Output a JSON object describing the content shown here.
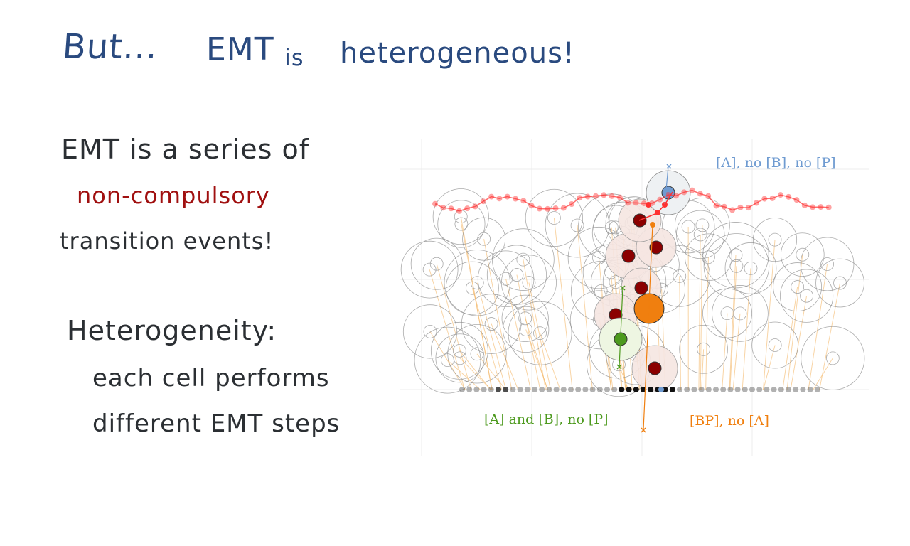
{
  "title": {
    "but": "But...",
    "emt": "EMT",
    "is": "is",
    "heterogeneous": "heterogeneous!"
  },
  "left_text": {
    "line1": "EMT is a series of",
    "line2": "non-compulsory",
    "line3": "transition events!",
    "line4": "Heterogeneity:",
    "line5": "each cell performs",
    "line6": "different EMT steps"
  },
  "diagram": {
    "label_blue": "[A], no [B], no [P]",
    "label_green": "[A] and [B], no [P]",
    "label_orange": "[BP], no [A]",
    "colors": {
      "blue": "#6f9bd1",
      "green": "#4d9a1e",
      "orange": "#f07f0f",
      "darkred": "#8b0000",
      "red": "#ff3030",
      "title_blue": "#2a4a7f",
      "highlight_red": "#a01010"
    }
  }
}
